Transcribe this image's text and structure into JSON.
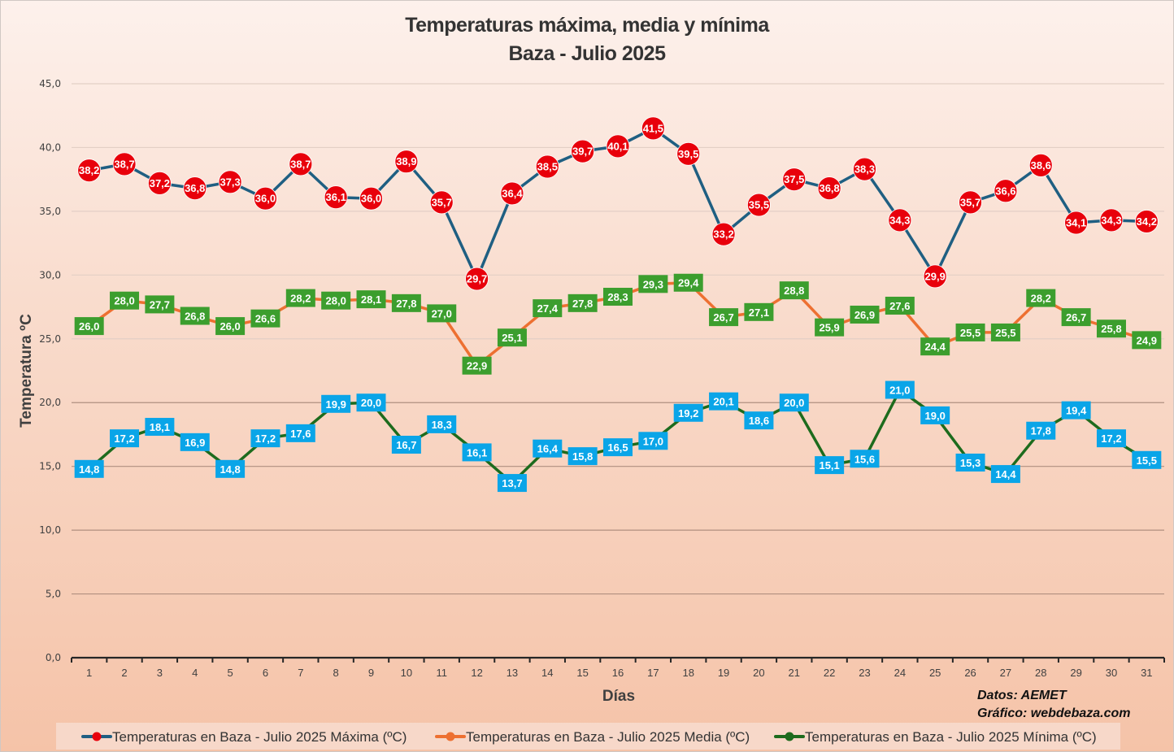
{
  "chart_data": {
    "type": "line",
    "title": "Temperaturas máxima, media y mínima",
    "subtitle": "Baza - Julio 2025",
    "xlabel": "Días",
    "ylabel": "Temperatura ºC",
    "ylim": [
      0,
      45
    ],
    "y_ticks": [
      "0,0",
      "5,0",
      "10,0",
      "15,0",
      "20,0",
      "25,0",
      "30,0",
      "35,0",
      "40,0",
      "45,0"
    ],
    "y_tick_values": [
      0,
      5,
      10,
      15,
      20,
      25,
      30,
      35,
      40,
      45
    ],
    "grid": true,
    "legend_position": "bottom",
    "categories": [
      "1",
      "2",
      "3",
      "4",
      "5",
      "6",
      "7",
      "8",
      "9",
      "10",
      "11",
      "12",
      "13",
      "14",
      "15",
      "16",
      "17",
      "18",
      "19",
      "20",
      "21",
      "22",
      "23",
      "24",
      "25",
      "26",
      "27",
      "28",
      "29",
      "30",
      "31"
    ],
    "series": [
      {
        "name": "Temperaturas en Baza - Julio 2025  Máxima (ºC)",
        "line_color": "#1f5f82",
        "marker_color": "#e8000b",
        "label_bg": "#e8000b",
        "marker": "circle",
        "values": [
          38.2,
          38.7,
          37.2,
          36.8,
          37.3,
          36.0,
          38.7,
          36.1,
          36.0,
          38.9,
          35.7,
          29.7,
          36.4,
          38.5,
          39.7,
          40.1,
          41.5,
          39.5,
          33.2,
          35.5,
          37.5,
          36.8,
          38.3,
          34.3,
          29.9,
          35.7,
          36.6,
          38.6,
          34.1,
          34.3,
          34.2
        ],
        "labels": [
          "38,2",
          "38,7",
          "37,2",
          "36,8",
          "37,3",
          "36,0",
          "38,7",
          "36,1",
          "36,0",
          "38,9",
          "35,7",
          "29,7",
          "36,4",
          "38,5",
          "39,7",
          "40,1",
          "41,5",
          "39,5",
          "33,2",
          "35,5",
          "37,5",
          "36,8",
          "38,3",
          "34,3",
          "29,9",
          "35,7",
          "36,6",
          "38,6",
          "34,1",
          "34,3",
          "34,2"
        ]
      },
      {
        "name": "Temperaturas en Baza - Julio 2025 Media (ºC)",
        "line_color": "#ed7031",
        "marker_color": "#ed7031",
        "label_bg": "#3c9e2e",
        "marker": "box",
        "values": [
          26.0,
          28.0,
          27.7,
          26.8,
          26.0,
          26.6,
          28.2,
          28.0,
          28.1,
          27.8,
          27.0,
          22.9,
          25.1,
          27.4,
          27.8,
          28.3,
          29.3,
          29.4,
          26.7,
          27.1,
          28.8,
          25.9,
          26.9,
          27.6,
          24.4,
          25.5,
          25.5,
          28.2,
          26.7,
          25.8,
          24.9
        ],
        "labels": [
          "26,0",
          "28,0",
          "27,7",
          "26,8",
          "26,0",
          "26,6",
          "28,2",
          "28,0",
          "28,1",
          "27,8",
          "27,0",
          "22,9",
          "25,1",
          "27,4",
          "27,8",
          "28,3",
          "29,3",
          "29,4",
          "26,7",
          "27,1",
          "28,8",
          "25,9",
          "26,9",
          "27,6",
          "24,4",
          "25,5",
          "25,5",
          "28,2",
          "26,7",
          "25,8",
          "24,9"
        ]
      },
      {
        "name": "Temperaturas en Baza - Julio 2025 Mínima (ºC)",
        "line_color": "#1d6b1d",
        "marker_color": "#1d6b1d",
        "label_bg": "#0aa5e8",
        "marker": "box",
        "values": [
          14.8,
          17.2,
          18.1,
          16.9,
          14.8,
          17.2,
          17.6,
          19.9,
          20.0,
          16.7,
          18.3,
          16.1,
          13.7,
          16.4,
          15.8,
          16.5,
          17.0,
          19.2,
          20.1,
          18.6,
          20.0,
          15.1,
          15.6,
          21.0,
          19.0,
          15.3,
          14.4,
          17.8,
          19.4,
          17.2,
          15.5
        ],
        "labels": [
          "14,8",
          "17,2",
          "18,1",
          "16,9",
          "14,8",
          "17,2",
          "17,6",
          "19,9",
          "20,0",
          "16,7",
          "18,3",
          "16,1",
          "13,7",
          "16,4",
          "15,8",
          "16,5",
          "17,0",
          "19,2",
          "20,1",
          "18,6",
          "20,0",
          "15,1",
          "15,6",
          "21,0",
          "19,0",
          "15,3",
          "14,4",
          "17,8",
          "19,4",
          "17,2",
          "15,5"
        ]
      }
    ],
    "annotations": [
      "Datos: AEMET",
      "Gráfico: webdebaza.com"
    ]
  }
}
